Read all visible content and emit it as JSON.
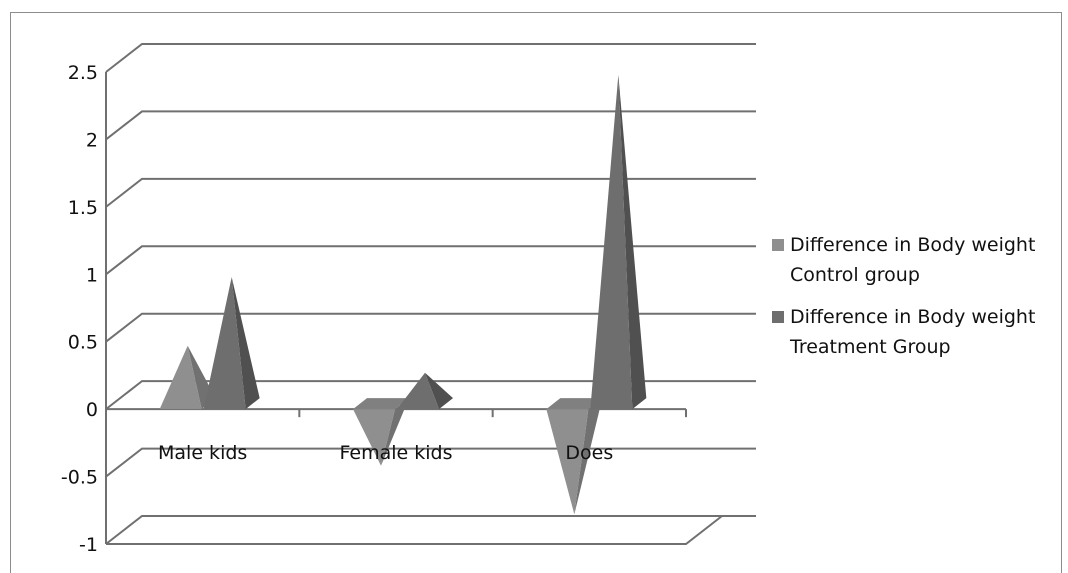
{
  "chart_data": {
    "type": "bar",
    "bar_shape": "3d-pyramid",
    "categories": [
      "Male kids",
      "Female kids",
      "Does"
    ],
    "series": [
      {
        "name": "Difference in Body weight Control group",
        "values": [
          0.47,
          -0.42,
          -0.78
        ],
        "color": "#8f8f8f"
      },
      {
        "name": "Difference in Body weight Treatment Group",
        "values": [
          0.98,
          0.27,
          2.48
        ],
        "color": "#6e6e6e"
      }
    ],
    "yticks": [
      "2.5",
      "2",
      "1.5",
      "1",
      "0.5",
      "0",
      "-0.5",
      "-1"
    ],
    "ylim": [
      -1,
      2.5
    ],
    "grid": true,
    "legend_position": "right",
    "title": "",
    "xlabel": "",
    "ylabel": ""
  },
  "legend": [
    {
      "line1": "Difference in Body weight",
      "line2": "Control group"
    },
    {
      "line1": "Difference in Body weight",
      "line2": "Treatment Group"
    }
  ]
}
